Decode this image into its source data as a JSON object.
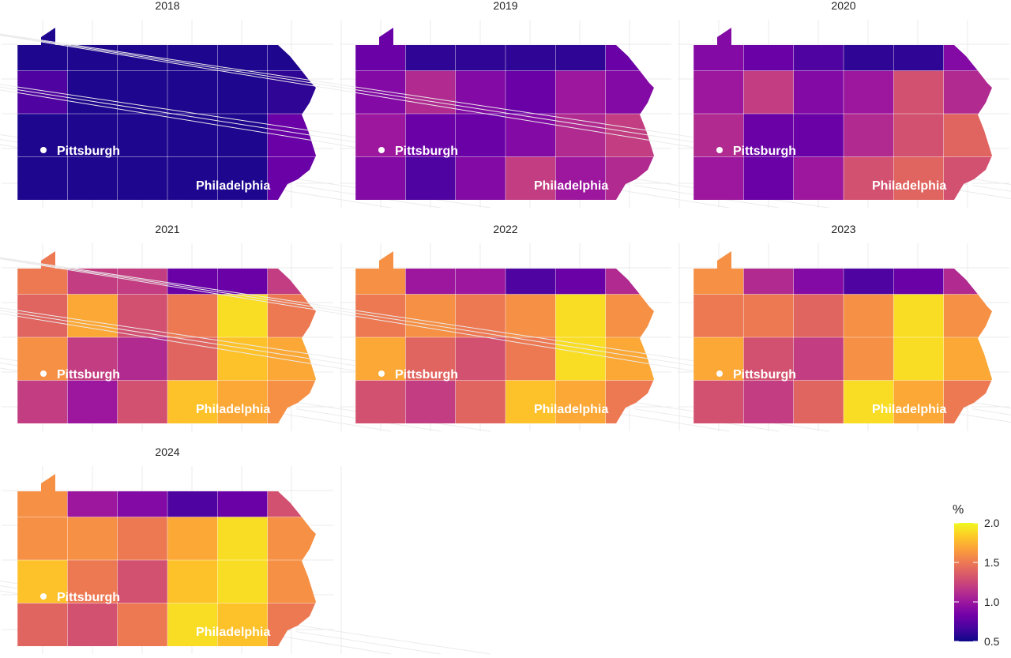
{
  "panels": [
    {
      "title": "2018",
      "values": [
        [
          0.55,
          0.55,
          0.55,
          0.55,
          0.55,
          0.55
        ],
        [
          0.7,
          0.55,
          0.55,
          0.55,
          0.55,
          0.6
        ],
        [
          0.55,
          0.55,
          0.55,
          0.55,
          0.55,
          0.8
        ],
        [
          0.55,
          0.55,
          0.55,
          0.55,
          0.55,
          0.8
        ]
      ]
    },
    {
      "title": "2019",
      "values": [
        [
          0.8,
          0.6,
          0.6,
          0.6,
          0.6,
          0.8
        ],
        [
          0.9,
          1.1,
          0.9,
          0.8,
          1.0,
          0.9
        ],
        [
          1.0,
          0.8,
          0.8,
          0.9,
          1.1,
          1.2
        ],
        [
          0.9,
          0.7,
          0.9,
          1.2,
          1.0,
          1.1
        ]
      ]
    },
    {
      "title": "2020",
      "values": [
        [
          0.9,
          0.8,
          0.7,
          0.6,
          0.6,
          0.9
        ],
        [
          1.0,
          1.2,
          0.9,
          1.0,
          1.3,
          1.1
        ],
        [
          1.1,
          0.8,
          0.8,
          1.1,
          1.3,
          1.4
        ],
        [
          1.0,
          0.8,
          1.0,
          1.3,
          1.4,
          1.3
        ]
      ]
    },
    {
      "title": "2021",
      "values": [
        [
          1.5,
          1.2,
          1.2,
          0.8,
          0.8,
          1.2
        ],
        [
          1.4,
          1.7,
          1.3,
          1.5,
          1.9,
          1.5
        ],
        [
          1.6,
          1.2,
          1.1,
          1.4,
          1.8,
          1.7
        ],
        [
          1.2,
          1.0,
          1.3,
          1.8,
          1.7,
          1.6
        ]
      ]
    },
    {
      "title": "2022",
      "values": [
        [
          1.6,
          1.0,
          1.0,
          0.7,
          0.8,
          1.1
        ],
        [
          1.5,
          1.6,
          1.5,
          1.6,
          1.9,
          1.6
        ],
        [
          1.7,
          1.4,
          1.3,
          1.5,
          1.9,
          1.7
        ],
        [
          1.3,
          1.2,
          1.4,
          1.8,
          1.7,
          1.5
        ]
      ]
    },
    {
      "title": "2023",
      "values": [
        [
          1.6,
          1.1,
          0.9,
          0.7,
          0.8,
          1.1
        ],
        [
          1.5,
          1.5,
          1.4,
          1.6,
          1.9,
          1.6
        ],
        [
          1.7,
          1.3,
          1.2,
          1.6,
          1.9,
          1.7
        ],
        [
          1.3,
          1.2,
          1.4,
          1.9,
          1.7,
          1.5
        ]
      ]
    },
    {
      "title": "2024",
      "values": [
        [
          1.6,
          1.0,
          0.9,
          0.7,
          0.8,
          1.3
        ],
        [
          1.6,
          1.6,
          1.5,
          1.7,
          1.9,
          1.6
        ],
        [
          1.8,
          1.5,
          1.3,
          1.8,
          1.9,
          1.6
        ],
        [
          1.4,
          1.3,
          1.5,
          1.9,
          1.8,
          1.5
        ]
      ]
    }
  ],
  "cities": [
    {
      "label": "Pittsburgh"
    },
    {
      "label": "Philadelphia"
    }
  ],
  "legend": {
    "title": "%",
    "ticks": [
      {
        "value": 2,
        "label": "2.0"
      },
      {
        "value": 1.5,
        "label": "1.5"
      },
      {
        "value": 1,
        "label": "1.0"
      },
      {
        "value": 0.5,
        "label": "0.5"
      }
    ]
  }
}
